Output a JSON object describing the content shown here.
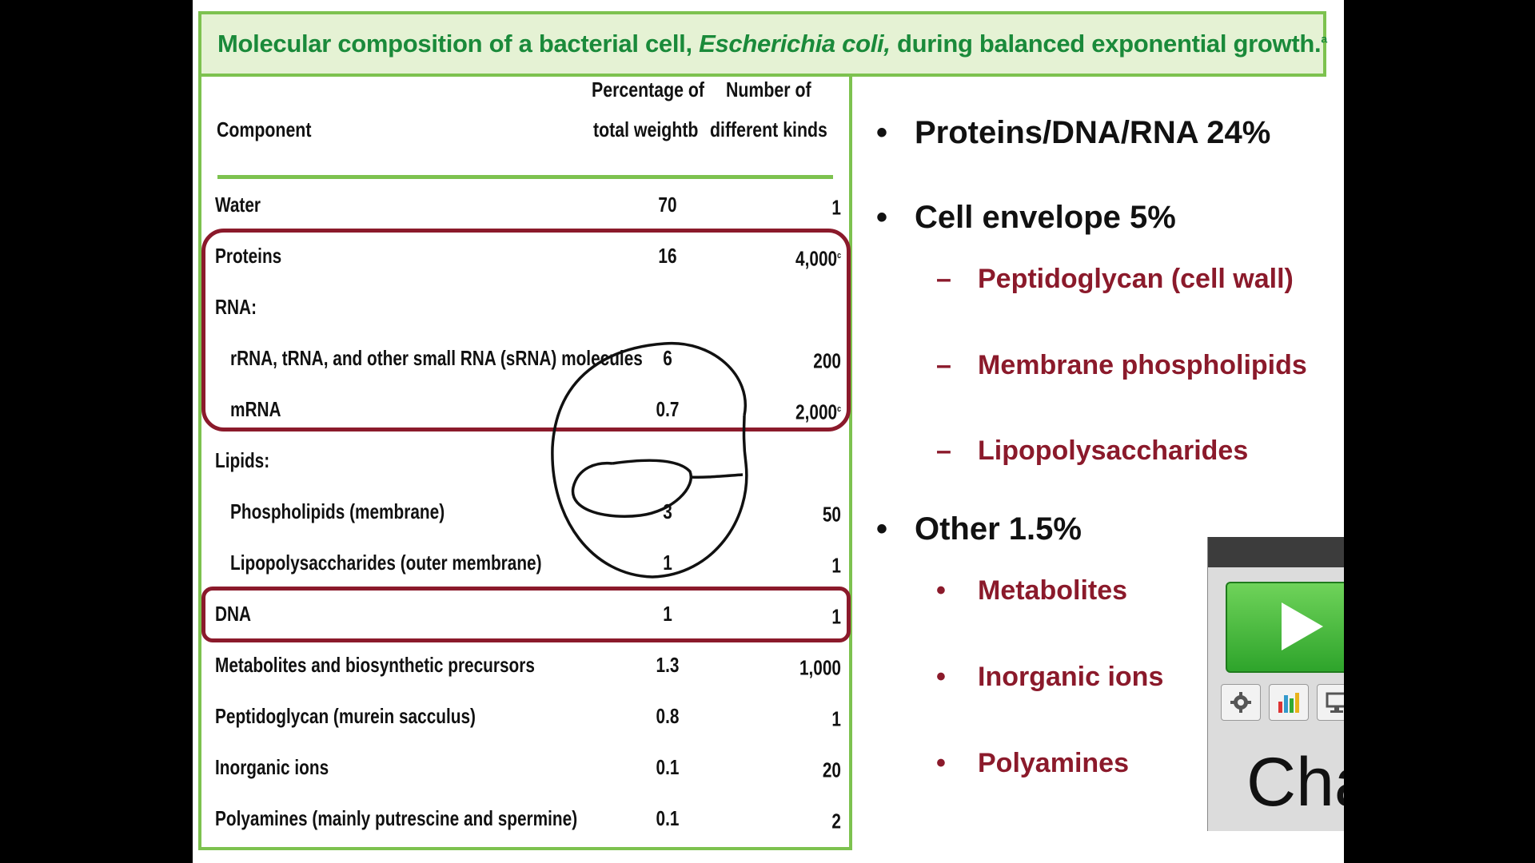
{
  "slide": {
    "title_prefix": "Molecular composition of a bacterial cell, ",
    "title_italic": "Escherichia coli,",
    "title_suffix": " during balanced exponential growth.",
    "title_footnote": "a"
  },
  "table": {
    "headers": {
      "component": "Component",
      "pct_line1": "Percentage of",
      "pct_line2": "total weightb",
      "kinds_line1": "Number of",
      "kinds_line2": "different kinds"
    },
    "rows": [
      {
        "component": "Water",
        "percent": "70",
        "kinds": "1",
        "kinds_note": ""
      },
      {
        "component": "Proteins",
        "percent": "16",
        "kinds": "4,000",
        "kinds_note": "c"
      },
      {
        "component": "RNA:",
        "percent": "",
        "kinds": "",
        "kinds_note": ""
      },
      {
        "component": "rRNA, tRNA, and other small RNA  (sRNA) molecules",
        "percent": "6",
        "kinds": "200",
        "kinds_note": ""
      },
      {
        "component": "mRNA",
        "percent": "0.7",
        "kinds": "2,000",
        "kinds_note": "c"
      },
      {
        "component": "Lipids:",
        "percent": "",
        "kinds": "",
        "kinds_note": ""
      },
      {
        "component": "Phospholipids (membrane)",
        "percent": "3",
        "kinds": "50",
        "kinds_note": ""
      },
      {
        "component": "Lipopolysaccharides (outer membrane)",
        "percent": "1",
        "kinds": "1",
        "kinds_note": ""
      },
      {
        "component": "DNA",
        "percent": "1",
        "kinds": "1",
        "kinds_note": ""
      },
      {
        "component": "Metabolites and biosynthetic precursors",
        "percent": "1.3",
        "kinds": "1,000",
        "kinds_note": ""
      },
      {
        "component": "Peptidoglycan (murein sacculus)",
        "percent": "0.8",
        "kinds": "1",
        "kinds_note": ""
      },
      {
        "component": "Inorganic ions",
        "percent": "0.1",
        "kinds": "20",
        "kinds_note": ""
      },
      {
        "component": "Polyamines (mainly putrescine and spermine)",
        "percent": "0.1",
        "kinds": "2",
        "kinds_note": ""
      }
    ]
  },
  "bullets": {
    "b1": "Proteins/DNA/RNA  24%",
    "b2": "Cell envelope  5%",
    "b2_sub1": "Peptidoglycan (cell wall)",
    "b2_sub2": "Membrane phospholipids",
    "b2_sub3": "Lipopolysaccharides",
    "b3": "Other  1.5%",
    "b3_sub1": "Metabolites",
    "b3_sub2": "Inorganic ions",
    "b3_sub3": "Polyamines",
    "bullet_mark": "•",
    "dash_mark": "–"
  },
  "widget": {
    "label": "Cha",
    "play_icon": "play-icon",
    "tools": [
      "gear-icon",
      "chart-icon",
      "display-icon"
    ]
  },
  "colors": {
    "title_green": "#1a8a3a",
    "border_green": "#7dc24f",
    "highlight_red": "#8b1a2b",
    "sub_bullet_red": "#8b1a2b"
  }
}
